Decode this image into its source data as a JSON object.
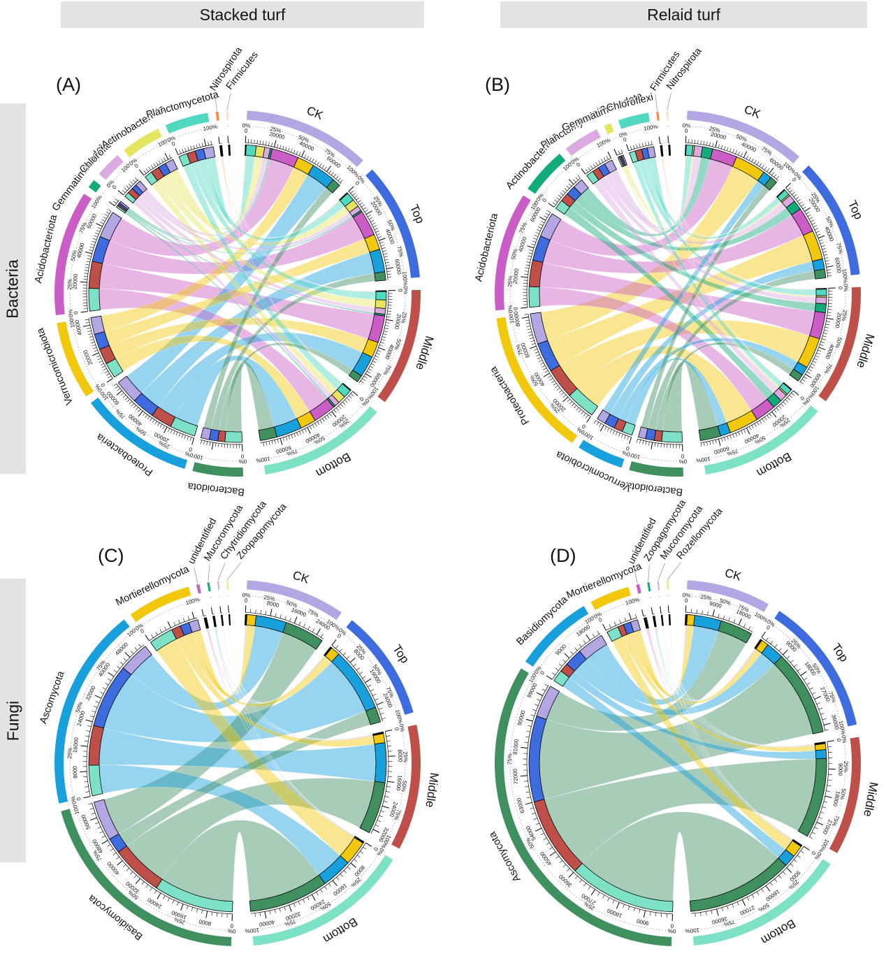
{
  "figure": {
    "col_headers": [
      "Stacked turf",
      "Relaid turf"
    ],
    "row_headers": [
      "Bacteria",
      "Fungi"
    ]
  },
  "axis_percent_labels": [
    "0%",
    "25%",
    "50%",
    "75%",
    "100%"
  ],
  "sample_colors": {
    "CK": "#b4a5e3",
    "Top": "#3e6cdf",
    "Middle": "#bf5049",
    "Bottom": "#7ce1c6"
  },
  "chart_data": [
    {
      "type": "chord",
      "panel_label": "(A)",
      "group": "Bacteria",
      "treatment": "Stacked turf",
      "matrix_columns": [
        "CK",
        "Top",
        "Middle",
        "Bottom"
      ],
      "samples": [
        {
          "name": "CK",
          "color": "#b4a5e3"
        },
        {
          "name": "Top",
          "color": "#3e6cdf"
        },
        {
          "name": "Middle",
          "color": "#bf5049"
        },
        {
          "name": "Bottom",
          "color": "#7ce1c6"
        }
      ],
      "taxa": [
        {
          "name": "Bacteroidota",
          "color": "#3f8f5f"
        },
        {
          "name": "Proteobacteria",
          "color": "#18a0dd"
        },
        {
          "name": "Verrucomicrobiota",
          "color": "#f2c80c"
        },
        {
          "name": "Acidobacteriota",
          "color": "#ca5ec6"
        },
        {
          "name": "Gemmatimonadota",
          "color": "#14ab7c"
        },
        {
          "name": "Chloroflexi",
          "color": "#dcaae2"
        },
        {
          "name": "Actinobacteriota",
          "color": "#e6e561"
        },
        {
          "name": "Planctomycetota",
          "color": "#50d8c0"
        },
        {
          "name": "Nitrospirota",
          "color": "#ff8848"
        },
        {
          "name": "Firmicutes",
          "color": "#ffddc4"
        }
      ],
      "matrix": [
        [
          6000,
          6000,
          5000,
          12000
        ],
        [
          17000,
          16000,
          15000,
          18000
        ],
        [
          12000,
          11000,
          11000,
          11000
        ],
        [
          19000,
          18000,
          19000,
          16000
        ],
        [
          1300,
          1200,
          1200,
          1300
        ],
        [
          4000,
          3500,
          4000,
          3500
        ],
        [
          6000,
          5500,
          6000,
          5500
        ],
        [
          7000,
          6000,
          6000,
          6000
        ],
        [
          400,
          400,
          350,
          350
        ],
        [
          250,
          250,
          250,
          250
        ]
      ],
      "axis": {
        "count_major_step": 20000,
        "count_minor_step": 2000,
        "count_labels_shown": [
          "0",
          "20000",
          "40000",
          "60000"
        ]
      }
    },
    {
      "type": "chord",
      "panel_label": "(B)",
      "group": "Bacteria",
      "treatment": "Relaid turf",
      "matrix_columns": [
        "CK",
        "Top",
        "Middle",
        "Bottom"
      ],
      "samples": [
        {
          "name": "CK",
          "color": "#b4a5e3"
        },
        {
          "name": "Top",
          "color": "#3e6cdf"
        },
        {
          "name": "Middle",
          "color": "#bf5049"
        },
        {
          "name": "Bottom",
          "color": "#7ce1c6"
        }
      ],
      "taxa": [
        {
          "name": "Bacteroidota",
          "color": "#3f8f5f"
        },
        {
          "name": "Verrucomicrobiota",
          "color": "#18a0dd"
        },
        {
          "name": "Proteobacteria",
          "color": "#f2c80c"
        },
        {
          "name": "Acidobacteriota",
          "color": "#ca5ec6"
        },
        {
          "name": "Actinobacteriota",
          "color": "#14ab7c"
        },
        {
          "name": "Planctomycetota",
          "color": "#dcaae2"
        },
        {
          "name": "Gemmatimonadota",
          "color": "#e6e561"
        },
        {
          "name": "Chloroflexi",
          "color": "#50d8c0"
        },
        {
          "name": "Firmicutes",
          "color": "#ff8848"
        },
        {
          "name": "Nitrospirota",
          "color": "#ffddc4"
        }
      ],
      "matrix": [
        [
          5000,
          6000,
          5000,
          14000
        ],
        [
          6000,
          7000,
          6000,
          7000
        ],
        [
          21000,
          20000,
          21000,
          20000
        ],
        [
          17000,
          17000,
          18000,
          14000
        ],
        [
          7000,
          6500,
          6000,
          6500
        ],
        [
          5500,
          5000,
          4500,
          5000
        ],
        [
          1000,
          1000,
          1000,
          1000
        ],
        [
          4500,
          4000,
          4500,
          4000
        ],
        [
          300,
          300,
          300,
          300
        ],
        [
          250,
          250,
          250,
          250
        ]
      ],
      "axis": {
        "count_major_step": 20000,
        "count_minor_step": 2000,
        "count_labels_shown": [
          "0",
          "20000",
          "40000",
          "60000",
          "80000"
        ]
      }
    },
    {
      "type": "chord",
      "panel_label": "(C)",
      "group": "Fungi",
      "treatment": "Stacked turf",
      "matrix_columns": [
        "CK",
        "Top",
        "Middle",
        "Bottom"
      ],
      "samples": [
        {
          "name": "CK",
          "color": "#b4a5e3"
        },
        {
          "name": "Top",
          "color": "#3e6cdf"
        },
        {
          "name": "Middle",
          "color": "#bf5049"
        },
        {
          "name": "Bottom",
          "color": "#7ce1c6"
        }
      ],
      "taxa": [
        {
          "name": "Basidiomycota",
          "color": "#3f8f5f"
        },
        {
          "name": "Ascomycota",
          "color": "#18a0dd"
        },
        {
          "name": "Mortierellomycota",
          "color": "#f2c80c"
        },
        {
          "name": "unidentified",
          "color": "#ca5ec6"
        },
        {
          "name": "Mucoromycota",
          "color": "#14ab7c"
        },
        {
          "name": "Chytridiomycota",
          "color": "#dcaae2"
        },
        {
          "name": "Zoopagomycota",
          "color": "#e6e561"
        }
      ],
      "matrix": [
        [
          13000,
          5000,
          17000,
          26000
        ],
        [
          10000,
          21000,
          13000,
          10000
        ],
        [
          3000,
          3000,
          3000,
          8000
        ],
        [
          200,
          200,
          200,
          200
        ],
        [
          150,
          150,
          150,
          150
        ],
        [
          100,
          100,
          100,
          100
        ],
        [
          80,
          80,
          80,
          80
        ]
      ],
      "axis": {
        "count_major_step": 8000,
        "count_minor_step": 1600,
        "count_labels_shown": [
          "0",
          "8000",
          "16000",
          "24000",
          "32000",
          "40000",
          "48000",
          "56000"
        ]
      }
    },
    {
      "type": "chord",
      "panel_label": "(D)",
      "group": "Fungi",
      "treatment": "Relaid turf",
      "matrix_columns": [
        "CK",
        "Top",
        "Middle",
        "Bottom"
      ],
      "samples": [
        {
          "name": "CK",
          "color": "#b4a5e3"
        },
        {
          "name": "Top",
          "color": "#3e6cdf"
        },
        {
          "name": "Middle",
          "color": "#bf5049"
        },
        {
          "name": "Bottom",
          "color": "#7ce1c6"
        }
      ],
      "taxa": [
        {
          "name": "Ascomycota",
          "color": "#3f8f5f"
        },
        {
          "name": "Basidiomycota",
          "color": "#18a0dd"
        },
        {
          "name": "Mortierellomycota",
          "color": "#f2c80c"
        },
        {
          "name": "unidentified",
          "color": "#ca5ec6"
        },
        {
          "name": "Zoopagomycota",
          "color": "#14ab7c"
        },
        {
          "name": "Mucoromycota",
          "color": "#dcaae2"
        },
        {
          "name": "Rozellomycota",
          "color": "#e6e561"
        }
      ],
      "matrix": [
        [
          11000,
          29000,
          27000,
          36000
        ],
        [
          9000,
          6000,
          3000,
          4000
        ],
        [
          2500,
          2500,
          2000,
          4000
        ],
        [
          250,
          250,
          200,
          200
        ],
        [
          150,
          150,
          150,
          150
        ],
        [
          100,
          100,
          100,
          100
        ],
        [
          100,
          100,
          100,
          100
        ]
      ],
      "axis": {
        "count_major_step": 9000,
        "count_minor_step": 1800,
        "count_labels_shown": [
          "0",
          "9000",
          "18000",
          "27000",
          "36000",
          "45000",
          "54000",
          "63000",
          "72000",
          "81000",
          "90000",
          "99000"
        ]
      }
    }
  ]
}
